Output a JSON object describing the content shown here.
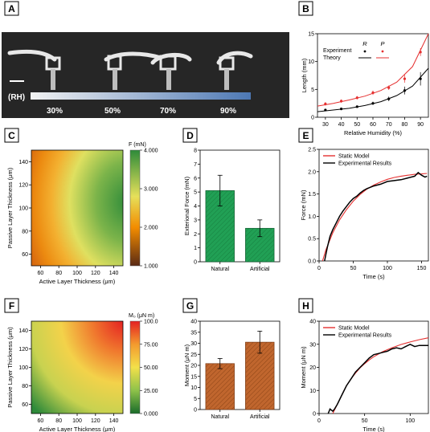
{
  "panel_letters": [
    "A",
    "B",
    "C",
    "D",
    "E",
    "F",
    "G",
    "H"
  ],
  "chart_data": [
    {
      "panel": "A",
      "type": "other",
      "side_label": "(RH)",
      "humidity_labels": [
        "30%",
        "50%",
        "70%",
        "90%"
      ],
      "colors": {
        "background": "#262626",
        "bar_start": "#f2f2f2",
        "bar_end": "#4d78b4"
      }
    },
    {
      "panel": "B",
      "type": "scatter",
      "xlabel": "Relative Humidity (%)",
      "ylabel": "Length (mm)",
      "xlim": [
        25,
        95
      ],
      "ylim": [
        0,
        15
      ],
      "xticks": [
        "30",
        "40",
        "50",
        "60",
        "70",
        "80",
        "90"
      ],
      "yticks": [
        "0",
        "5",
        "10",
        "15"
      ],
      "legend_title": "Experiment",
      "legend_theory": "Theory",
      "series": [
        {
          "name": "R",
          "color": "#000000",
          "x": [
            30,
            40,
            50,
            60,
            70,
            80,
            90
          ],
          "y": [
            1.3,
            1.5,
            1.9,
            2.5,
            3.3,
            4.8,
            6.9
          ],
          "err": [
            0.2,
            0.2,
            0.2,
            0.3,
            0.4,
            0.7,
            1.2
          ]
        },
        {
          "name": "P",
          "color": "#e53030",
          "x": [
            30,
            40,
            50,
            60,
            70,
            80,
            90
          ],
          "y": [
            2.4,
            2.9,
            3.5,
            4.4,
            5.3,
            6.9,
            11.7
          ],
          "err": [
            0.3,
            0.3,
            0.3,
            0.4,
            0.4,
            0.7,
            0.7
          ]
        }
      ],
      "theory": [
        {
          "name": "R",
          "color": "#000000",
          "x": [
            25,
            35,
            45,
            55,
            65,
            75,
            85,
            95
          ],
          "y": [
            1.0,
            1.3,
            1.6,
            2.1,
            2.8,
            3.9,
            5.6,
            8.8
          ]
        },
        {
          "name": "P",
          "color": "#e53030",
          "x": [
            25,
            35,
            45,
            55,
            65,
            75,
            85,
            95
          ],
          "y": [
            2.0,
            2.5,
            3.1,
            3.8,
            4.8,
            6.3,
            9.1,
            15.0
          ]
        }
      ]
    },
    {
      "panel": "C",
      "type": "heatmap",
      "xlabel": "Active Layer Thickness (μm)",
      "ylabel": "Passive Layer Thickness (μm)",
      "xlim": [
        50,
        150
      ],
      "ylim": [
        50,
        150
      ],
      "xticks": [
        "60",
        "80",
        "100",
        "120",
        "140"
      ],
      "yticks": [
        "60",
        "80",
        "100",
        "120",
        "140"
      ],
      "colorbar_title": "F (mN)",
      "colorbar_ticks": [
        "1.000",
        "2.000",
        "3.000",
        "4.000"
      ],
      "colorbar_range": [
        1,
        4
      ],
      "colors": [
        "#5a2a14",
        "#f28c00",
        "#e6e05a",
        "#2e8b3a"
      ]
    },
    {
      "panel": "D",
      "type": "bar",
      "ylabel": "Exterional Force (mN)",
      "ylim": [
        0,
        8
      ],
      "yticks": [
        "0",
        "1",
        "2",
        "3",
        "4",
        "5",
        "6",
        "7",
        "8"
      ],
      "categories": [
        "Natural",
        "Artificial"
      ],
      "values": [
        5.1,
        2.4
      ],
      "err": [
        1.1,
        0.6
      ],
      "colors": {
        "bar": "#21a055",
        "edge": "#125c30"
      }
    },
    {
      "panel": "E",
      "type": "line",
      "xlabel": "Time (s)",
      "ylabel": "Force (mN)",
      "xlim": [
        0,
        160
      ],
      "ylim": [
        0,
        2.5
      ],
      "xticks": [
        "0",
        "50",
        "100",
        "150"
      ],
      "yticks": [
        "0.0",
        "0.5",
        "1.0",
        "1.5",
        "2.0",
        "2.5"
      ],
      "legend": [
        "Static Model",
        "Experimental Results"
      ],
      "series": [
        {
          "name": "Static Model",
          "color": "#e53030",
          "x": [
            5,
            10,
            20,
            30,
            40,
            50,
            60,
            70,
            80,
            90,
            100,
            110,
            120,
            130,
            140,
            150,
            158
          ],
          "y": [
            0.0,
            0.25,
            0.63,
            0.92,
            1.15,
            1.34,
            1.49,
            1.61,
            1.7,
            1.77,
            1.83,
            1.87,
            1.9,
            1.92,
            1.94,
            1.95,
            1.96
          ]
        },
        {
          "name": "Experimental Results",
          "color": "#000000",
          "x": [
            8,
            12,
            16,
            20,
            25,
            30,
            35,
            40,
            45,
            50,
            55,
            60,
            65,
            70,
            80,
            90,
            100,
            110,
            120,
            130,
            140,
            145,
            150,
            155,
            158
          ],
          "y": [
            0.0,
            0.3,
            0.55,
            0.7,
            0.85,
            1.0,
            1.12,
            1.22,
            1.32,
            1.4,
            1.45,
            1.52,
            1.58,
            1.62,
            1.68,
            1.72,
            1.78,
            1.8,
            1.82,
            1.86,
            1.9,
            1.98,
            1.92,
            1.88,
            1.9
          ]
        }
      ]
    },
    {
      "panel": "F",
      "type": "heatmap",
      "xlabel": "Active Layer Thickness (μm)",
      "ylabel": "Passive Layer Thickness (μm)",
      "xlim": [
        50,
        150
      ],
      "ylim": [
        50,
        150
      ],
      "xticks": [
        "60",
        "80",
        "100",
        "120",
        "140"
      ],
      "yticks": [
        "60",
        "80",
        "100",
        "120",
        "140"
      ],
      "colorbar_title": "M₀ (μN m)",
      "colorbar_ticks": [
        "0.000",
        "25.00",
        "50.00",
        "75.00",
        "100.0"
      ],
      "colorbar_range": [
        0,
        100
      ],
      "colors": [
        "#1a6b2a",
        "#8ec24a",
        "#f3e04a",
        "#f39a2e",
        "#e52222"
      ]
    },
    {
      "panel": "G",
      "type": "bar",
      "ylabel": "Moment (μN m)",
      "ylim": [
        0,
        40
      ],
      "yticks": [
        "0",
        "5",
        "10",
        "15",
        "20",
        "25",
        "30",
        "35",
        "40"
      ],
      "categories": [
        "Natural",
        "Artificial"
      ],
      "values": [
        20.8,
        30.5
      ],
      "err": [
        2.3,
        5.0
      ],
      "colors": {
        "bar": "#c0662e",
        "edge": "#7a3a14"
      }
    },
    {
      "panel": "H",
      "type": "line",
      "xlabel": "Time (s)",
      "ylabel": "Moment (μN m)",
      "xlim": [
        0,
        120
      ],
      "ylim": [
        0,
        40
      ],
      "xticks": [
        "0",
        "50",
        "100"
      ],
      "yticks": [
        "0",
        "10",
        "20",
        "30",
        "40"
      ],
      "legend": [
        "Static Model",
        "Experimental Results"
      ],
      "series": [
        {
          "name": "Static Model",
          "color": "#e53030",
          "x": [
            15,
            20,
            25,
            30,
            35,
            40,
            45,
            50,
            55,
            60,
            70,
            80,
            90,
            100,
            110,
            120
          ],
          "y": [
            0,
            4,
            8,
            12,
            15,
            17.5,
            19.8,
            21.6,
            23.2,
            24.6,
            26.8,
            28.5,
            29.9,
            31.0,
            32.0,
            32.8
          ]
        },
        {
          "name": "Experimental Results",
          "color": "#000000",
          "x": [
            10,
            12,
            15,
            17,
            20,
            25,
            30,
            35,
            40,
            45,
            50,
            55,
            60,
            65,
            70,
            75,
            80,
            85,
            90,
            95,
            100,
            105,
            110,
            115,
            120
          ],
          "y": [
            0,
            2,
            1,
            2,
            4,
            8,
            12,
            15,
            18,
            20,
            22,
            24,
            25.5,
            26,
            26.5,
            27,
            28,
            28.5,
            28,
            29,
            30,
            29,
            29.5,
            29.5,
            29.5
          ]
        }
      ]
    }
  ]
}
